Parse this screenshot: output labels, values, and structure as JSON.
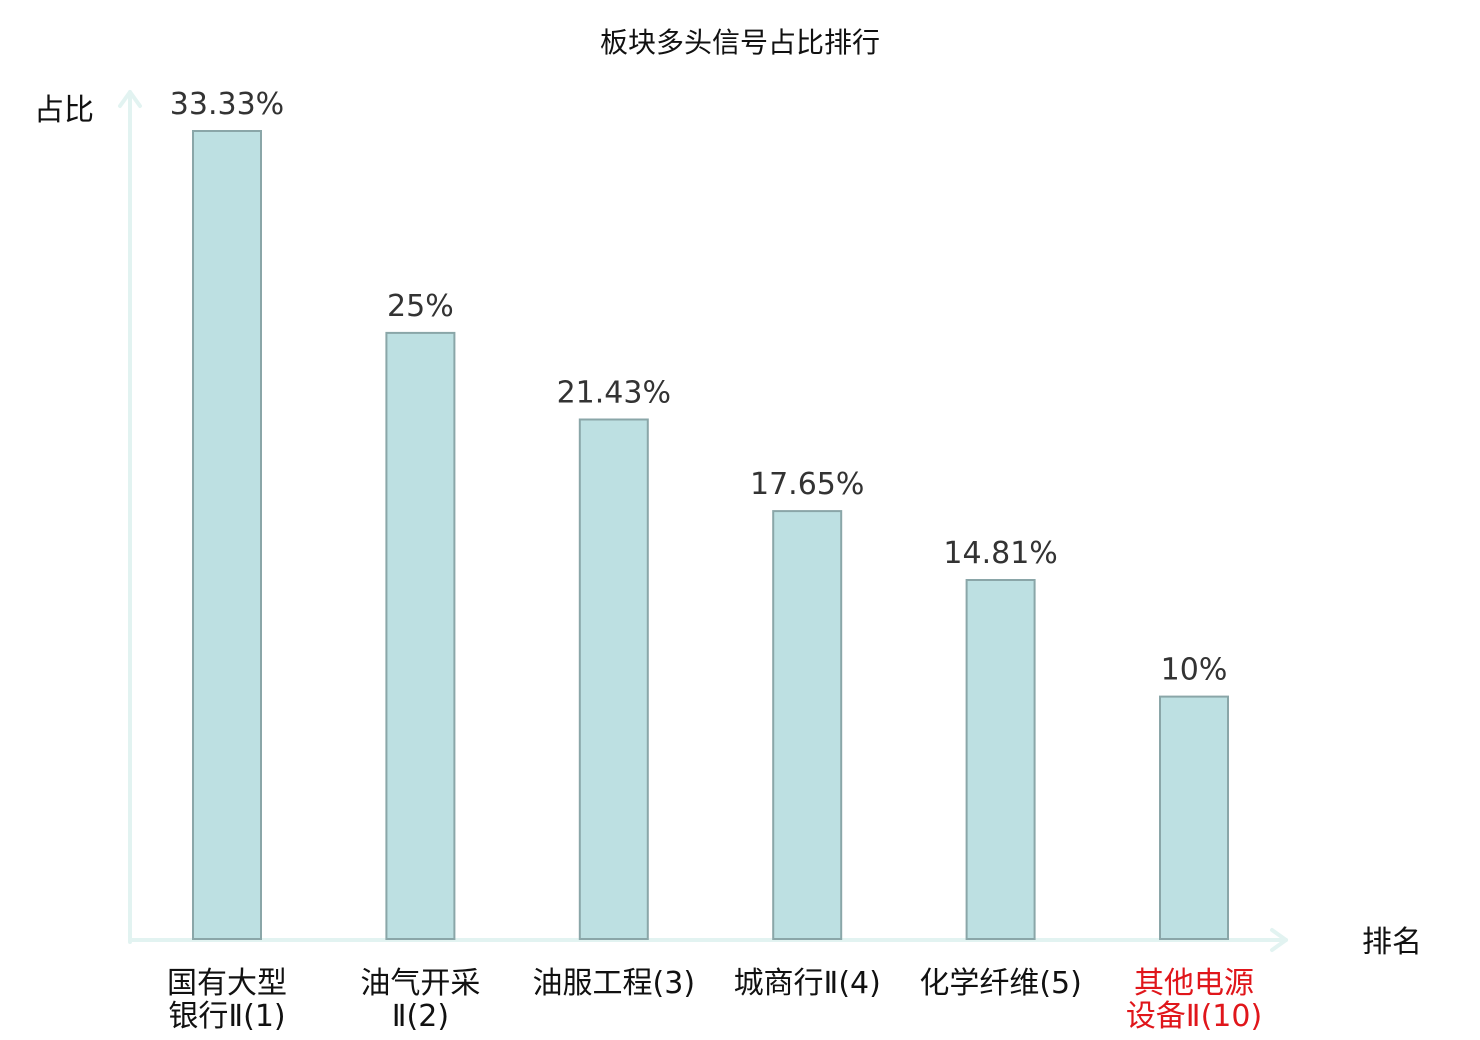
{
  "chart_data": {
    "type": "bar",
    "title": "板块多头信号占比排行",
    "xlabel": "排名",
    "ylabel": "占比",
    "ylim": [
      0,
      35
    ],
    "grid": false,
    "categories": [
      [
        "国有大型",
        "银行Ⅱ(1)"
      ],
      [
        "油气开采",
        "Ⅱ(2)"
      ],
      [
        "油服工程(3)"
      ],
      [
        "城商行Ⅱ(4)"
      ],
      [
        "化学纤维(5)"
      ],
      [
        "其他电源",
        "设备Ⅱ(10)"
      ]
    ],
    "values": [
      33.33,
      25,
      21.43,
      17.65,
      14.81,
      10
    ],
    "value_labels": [
      "33.33%",
      "25%",
      "21.43%",
      "17.65%",
      "14.81%",
      "10%"
    ],
    "highlight_index": 5
  },
  "colors": {
    "bar_fill": "#bde0e2",
    "bar_stroke": "#8aa6a8",
    "axis": "#e2f3f1",
    "text": "#111111",
    "value_text": "#333333",
    "highlight": "#e0161b"
  }
}
